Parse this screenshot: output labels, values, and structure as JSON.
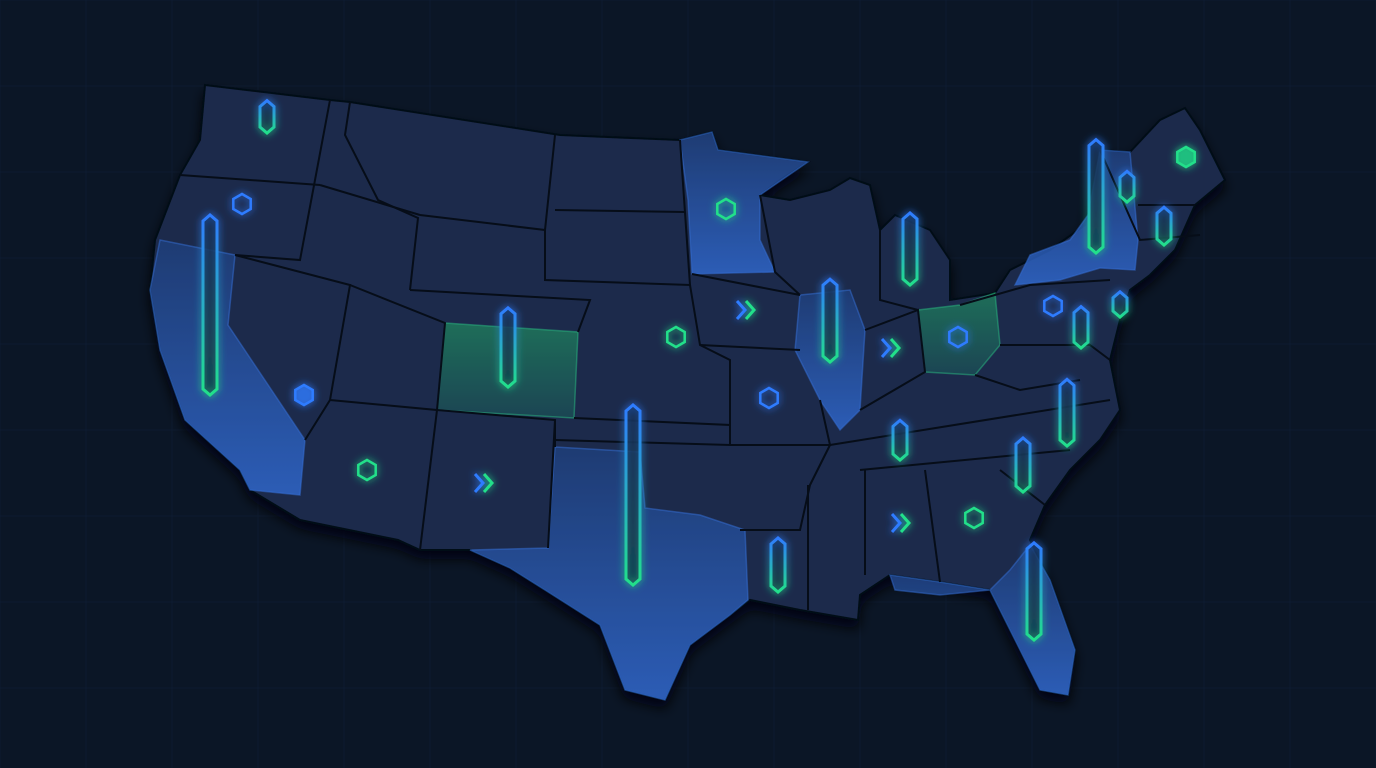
{
  "colors": {
    "background": "#0b1626",
    "land": "#1b2b4b",
    "border": "#060d18",
    "highlight_blue": "#2f66c9",
    "highlight_green": "#1f7a5c",
    "bar_top": "#2f7bff",
    "bar_bottom": "#22e08a",
    "hex_blue": "#2f7bff",
    "hex_green": "#22e08a"
  },
  "highlighted_states": [
    {
      "state": "CA",
      "tone": "blue"
    },
    {
      "state": "TX",
      "tone": "blue"
    },
    {
      "state": "CO",
      "tone": "green"
    },
    {
      "state": "MN",
      "tone": "blue"
    },
    {
      "state": "IL",
      "tone": "blue"
    },
    {
      "state": "OH",
      "tone": "green"
    },
    {
      "state": "NY",
      "tone": "blue"
    },
    {
      "state": "FL",
      "tone": "blue"
    }
  ],
  "markers": [
    {
      "state": "CA",
      "kind": "bar",
      "level": 1.0
    },
    {
      "state": "WA",
      "kind": "bar",
      "level": 0.18
    },
    {
      "state": "CO",
      "kind": "bar",
      "level": 0.44
    },
    {
      "state": "TX",
      "kind": "bar",
      "level": 1.0
    },
    {
      "state": "IL",
      "kind": "bar",
      "level": 0.46
    },
    {
      "state": "MI",
      "kind": "bar",
      "level": 0.4
    },
    {
      "state": "NY",
      "kind": "bar",
      "level": 0.63
    },
    {
      "state": "VT",
      "kind": "bar",
      "level": 0.17
    },
    {
      "state": "MA",
      "kind": "bar",
      "level": 0.21
    },
    {
      "state": "NJ",
      "kind": "bar",
      "level": 0.14
    },
    {
      "state": "DE",
      "kind": "bar",
      "level": 0.23
    },
    {
      "state": "VA",
      "kind": "bar",
      "level": 0.37
    },
    {
      "state": "TN",
      "kind": "bar",
      "level": 0.22
    },
    {
      "state": "SC",
      "kind": "bar",
      "level": 0.3
    },
    {
      "state": "LA",
      "kind": "bar",
      "level": 0.3
    },
    {
      "state": "FL",
      "kind": "bar",
      "level": 0.54
    },
    {
      "state": "OR",
      "kind": "hex",
      "tone": "blue"
    },
    {
      "state": "NV",
      "kind": "hex-filled",
      "tone": "blue"
    },
    {
      "state": "AZ",
      "kind": "hex",
      "tone": "green"
    },
    {
      "state": "NE",
      "kind": "hex",
      "tone": "green"
    },
    {
      "state": "MN",
      "kind": "hex",
      "tone": "green"
    },
    {
      "state": "MO",
      "kind": "hex",
      "tone": "blue"
    },
    {
      "state": "OH",
      "kind": "hex",
      "tone": "blue"
    },
    {
      "state": "PA",
      "kind": "hex",
      "tone": "blue"
    },
    {
      "state": "GA",
      "kind": "hex",
      "tone": "green"
    },
    {
      "state": "ME",
      "kind": "hex-filled",
      "tone": "green"
    },
    {
      "state": "NM",
      "kind": "chevron"
    },
    {
      "state": "IA",
      "kind": "chevron"
    },
    {
      "state": "IN",
      "kind": "chevron"
    },
    {
      "state": "AL",
      "kind": "chevron"
    }
  ]
}
